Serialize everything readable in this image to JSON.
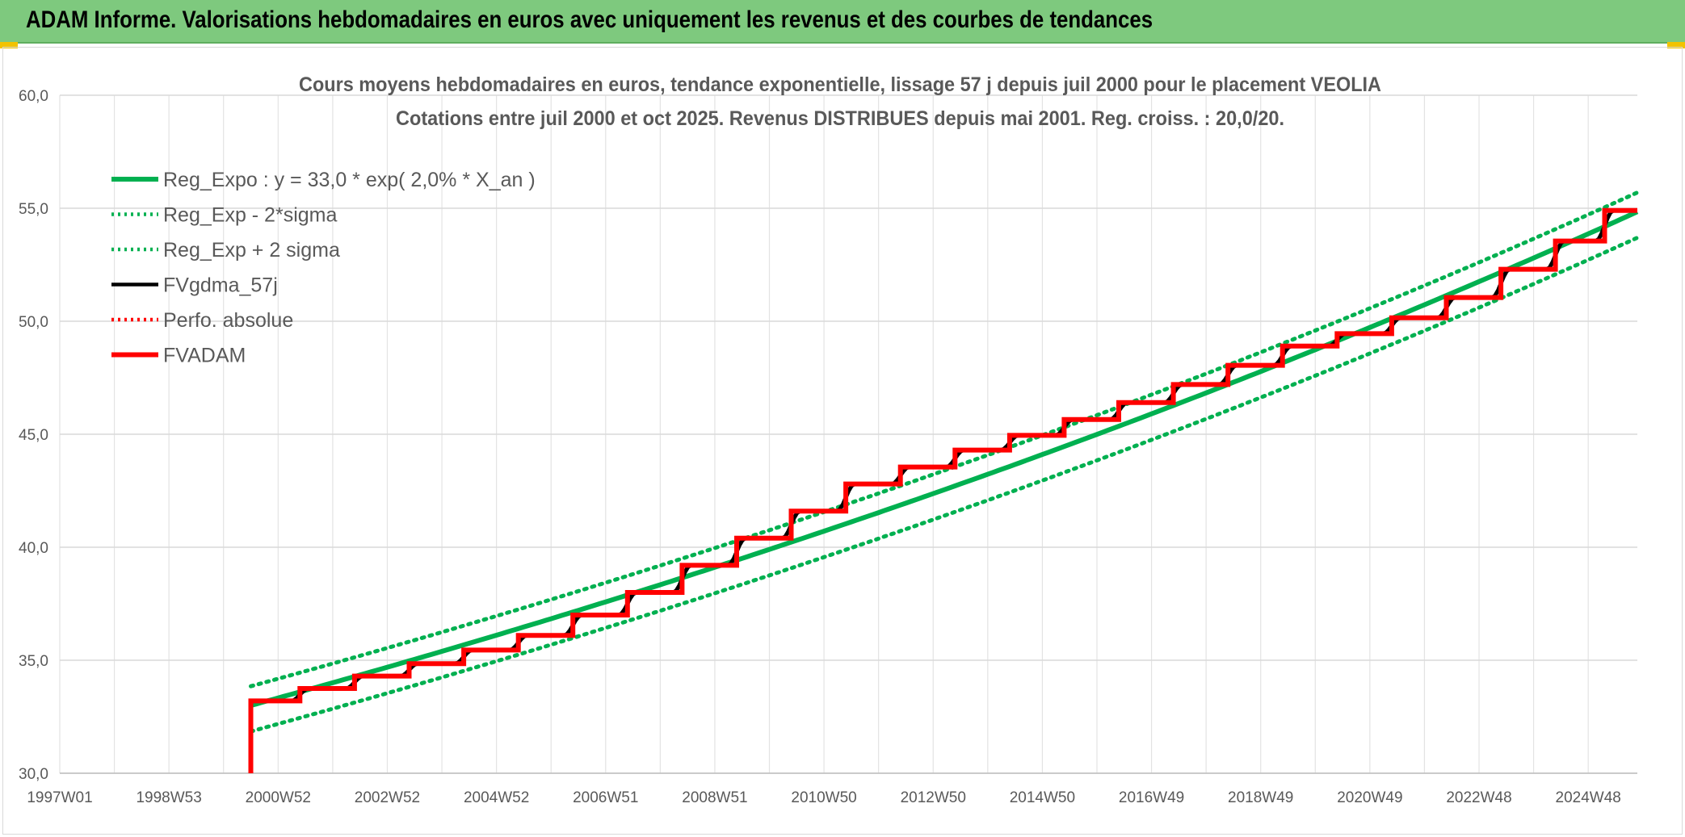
{
  "banner": {
    "title": "ADAM Informe. Valorisations hebdomadaires en euros avec uniquement les revenus et des courbes de tendances",
    "background": "#7ec97e"
  },
  "chart_data": {
    "type": "line",
    "title": "Cours moyens hebdomadaires en euros, tendance exponentielle, lissage 57 j depuis juil 2000 pour le placement VEOLIA",
    "subtitle": "Cotations entre juil 2000 et oct 2025. Revenus DISTRIBUES depuis mai 2001. Reg. croiss. : 20,0/20.",
    "xlabel": "",
    "ylabel": "",
    "ylim": [
      30,
      60
    ],
    "yticks": [
      "30,0",
      "35,0",
      "40,0",
      "45,0",
      "50,0",
      "55,0",
      "60,0"
    ],
    "xlim": [
      1997.0,
      2025.9
    ],
    "xticks": [
      {
        "label": "1997W01",
        "x": 1997.0
      },
      {
        "label": "1998W53",
        "x": 1999.0
      },
      {
        "label": "2000W52",
        "x": 2001.0
      },
      {
        "label": "2002W52",
        "x": 2003.0
      },
      {
        "label": "2004W52",
        "x": 2005.0
      },
      {
        "label": "2006W51",
        "x": 2007.0
      },
      {
        "label": "2008W51",
        "x": 2009.0
      },
      {
        "label": "2010W50",
        "x": 2011.0
      },
      {
        "label": "2012W50",
        "x": 2013.0
      },
      {
        "label": "2014W50",
        "x": 2015.0
      },
      {
        "label": "2016W49",
        "x": 2017.0
      },
      {
        "label": "2018W49",
        "x": 2019.0
      },
      {
        "label": "2020W49",
        "x": 2021.0
      },
      {
        "label": "2022W48",
        "x": 2023.0
      },
      {
        "label": "2024W48",
        "x": 2025.0
      }
    ],
    "grid": true,
    "legend_position": "top-left",
    "legend": [
      {
        "name": "Reg_Expo : y = 33,0 * exp( 2,0% *  X_an )",
        "color": "#00b050",
        "style": "solid-thick"
      },
      {
        "name": "Reg_Exp - 2*sigma",
        "color": "#00b050",
        "style": "dotted"
      },
      {
        "name": "Reg_Exp + 2 sigma",
        "color": "#00b050",
        "style": "dotted"
      },
      {
        "name": "FVgdma_57j",
        "color": "#000000",
        "style": "solid"
      },
      {
        "name": "Perfo. absolue",
        "color": "#ff0000",
        "style": "dotted"
      },
      {
        "name": "FVADAM",
        "color": "#ff0000",
        "style": "solid-thick"
      }
    ],
    "regression": {
      "start_x": 2000.5,
      "base": 33.0,
      "rate": 0.02,
      "lower_offset": -1.15,
      "upper_offset": 0.85
    },
    "fvadam_steps": [
      {
        "x": 2000.5,
        "y": 33.2
      },
      {
        "x": 2001.4,
        "y": 33.75
      },
      {
        "x": 2002.4,
        "y": 34.3
      },
      {
        "x": 2003.4,
        "y": 34.85
      },
      {
        "x": 2004.4,
        "y": 35.45
      },
      {
        "x": 2005.4,
        "y": 36.1
      },
      {
        "x": 2006.4,
        "y": 37.0
      },
      {
        "x": 2007.4,
        "y": 38.0
      },
      {
        "x": 2008.4,
        "y": 39.2
      },
      {
        "x": 2009.4,
        "y": 40.4
      },
      {
        "x": 2010.4,
        "y": 41.6
      },
      {
        "x": 2011.4,
        "y": 42.8
      },
      {
        "x": 2012.4,
        "y": 43.55
      },
      {
        "x": 2013.4,
        "y": 44.3
      },
      {
        "x": 2014.4,
        "y": 44.95
      },
      {
        "x": 2015.4,
        "y": 45.65
      },
      {
        "x": 2016.4,
        "y": 46.4
      },
      {
        "x": 2017.4,
        "y": 47.2
      },
      {
        "x": 2018.4,
        "y": 48.05
      },
      {
        "x": 2019.4,
        "y": 48.9
      },
      {
        "x": 2020.4,
        "y": 49.45
      },
      {
        "x": 2021.4,
        "y": 50.15
      },
      {
        "x": 2022.4,
        "y": 51.05
      },
      {
        "x": 2023.4,
        "y": 52.3
      },
      {
        "x": 2024.4,
        "y": 53.55
      },
      {
        "x": 2025.3,
        "y": 54.9
      }
    ],
    "fvadam_start_y": 30.0,
    "fvadam_end_x": 2025.9
  }
}
